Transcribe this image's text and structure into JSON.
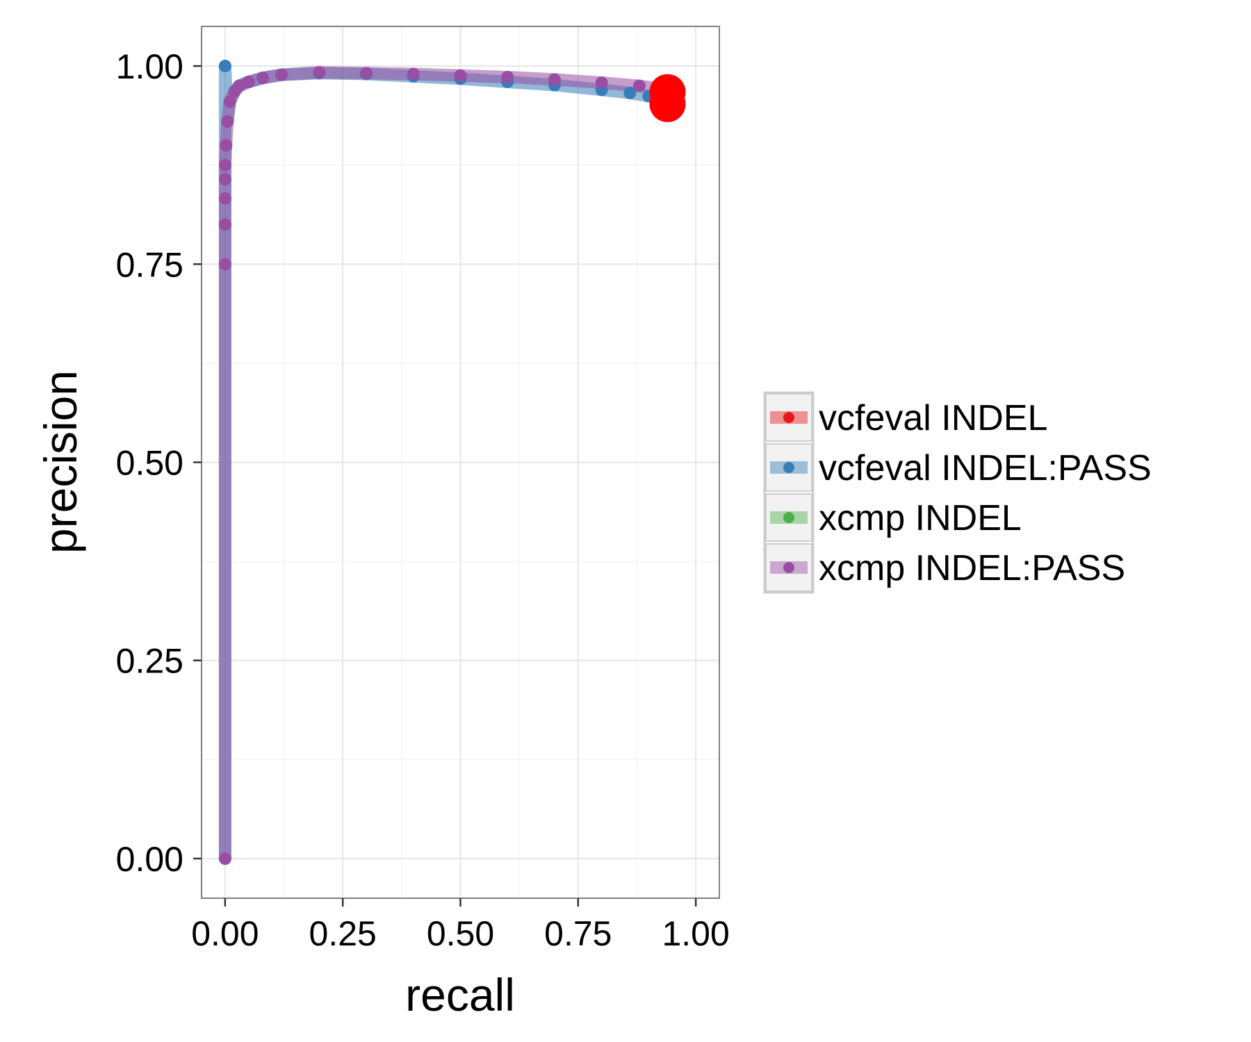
{
  "chart_data": {
    "type": "line",
    "title": "",
    "xlabel": "recall",
    "ylabel": "precision",
    "xlim": [
      -0.05,
      1.05
    ],
    "ylim": [
      -0.05,
      1.05
    ],
    "x_ticks": [
      "0.00",
      "0.25",
      "0.50",
      "0.75",
      "1.00"
    ],
    "y_ticks": [
      "0.00",
      "0.25",
      "0.50",
      "0.75",
      "1.00"
    ],
    "grid": true,
    "legend_position": "right",
    "series": [
      {
        "name": "vcfeval INDEL",
        "color": "#e41a1c",
        "points": [
          [
            0.94,
            0.967
          ],
          [
            0.94,
            0.952
          ]
        ],
        "marker_only": true
      },
      {
        "name": "vcfeval INDEL:PASS",
        "color": "#377eb8",
        "points": [
          [
            0.0,
            0.0
          ],
          [
            0.0,
            1.0
          ],
          [
            0.005,
            0.93
          ],
          [
            0.01,
            0.955
          ],
          [
            0.02,
            0.968
          ],
          [
            0.03,
            0.975
          ],
          [
            0.05,
            0.98
          ],
          [
            0.08,
            0.985
          ],
          [
            0.12,
            0.989
          ],
          [
            0.2,
            0.991
          ],
          [
            0.3,
            0.99
          ],
          [
            0.4,
            0.987
          ],
          [
            0.5,
            0.984
          ],
          [
            0.6,
            0.98
          ],
          [
            0.7,
            0.976
          ],
          [
            0.8,
            0.97
          ],
          [
            0.86,
            0.966
          ],
          [
            0.9,
            0.962
          ],
          [
            0.93,
            0.958
          ],
          [
            0.94,
            0.955
          ]
        ]
      },
      {
        "name": "xcmp INDEL",
        "color": "#4daf4a",
        "points": []
      },
      {
        "name": "xcmp INDEL:PASS",
        "color": "#984ea3",
        "points": [
          [
            0.0,
            0.0
          ],
          [
            0.0,
            0.75
          ],
          [
            0.0,
            0.8
          ],
          [
            0.0,
            0.833
          ],
          [
            0.0,
            0.857
          ],
          [
            0.0,
            0.875
          ],
          [
            0.002,
            0.9
          ],
          [
            0.005,
            0.93
          ],
          [
            0.01,
            0.955
          ],
          [
            0.02,
            0.968
          ],
          [
            0.03,
            0.975
          ],
          [
            0.05,
            0.98
          ],
          [
            0.08,
            0.985
          ],
          [
            0.12,
            0.989
          ],
          [
            0.2,
            0.992
          ],
          [
            0.3,
            0.991
          ],
          [
            0.4,
            0.99
          ],
          [
            0.5,
            0.988
          ],
          [
            0.6,
            0.986
          ],
          [
            0.7,
            0.983
          ],
          [
            0.8,
            0.979
          ],
          [
            0.88,
            0.975
          ],
          [
            0.92,
            0.972
          ],
          [
            0.94,
            0.97
          ]
        ]
      }
    ]
  }
}
